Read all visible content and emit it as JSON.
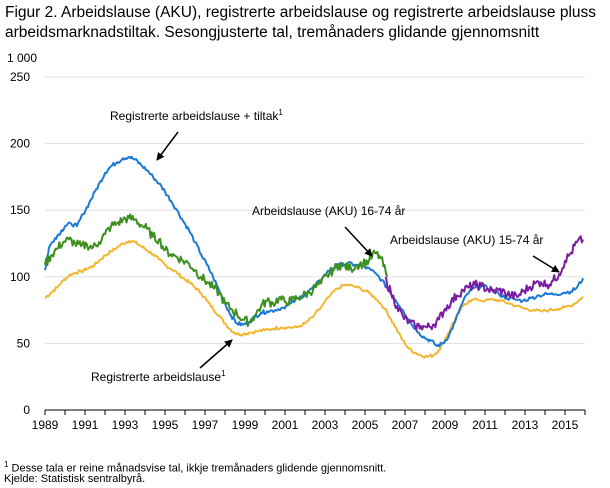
{
  "title": "Figur 2. Arbeidslause (AKU), registrerte arbeidslause og registrerte arbeidslause pluss arbeidsmarknadstiltak. Sesongjusterte tal, tremånaders glidande gjennomsnitt",
  "footnote_marker": "1",
  "footnote": "Desse tala er reine månadsvise tal, ikkje tremånaders glidende gjennomsnitt.",
  "source": "Kjelde: Statistisk sentralbyrå.",
  "colors": {
    "registered_plus": "#1a7ad4",
    "aku_16_74": "#3d8f1e",
    "aku_15_74": "#7a1fa2",
    "registered": "#f2b630",
    "grid": "#e0e0e0",
    "axis": "#000000"
  },
  "chart_data": {
    "type": "line",
    "ylabel": "1 000",
    "ylim": [
      0,
      250
    ],
    "yticks": [
      0,
      50,
      100,
      150,
      200,
      250
    ],
    "xlim": [
      1989,
      2016
    ],
    "xticks": [
      1989,
      1991,
      1993,
      1995,
      1997,
      1999,
      2001,
      2003,
      2005,
      2007,
      2009,
      2011,
      2013,
      2015
    ],
    "grid": true,
    "annotations": [
      {
        "text": "Registrerte  arbeidslause  + tiltak",
        "sup": "1",
        "series": "registered_plus"
      },
      {
        "text": "Arbeidslause  (AKU) 16-74  år",
        "sup": "",
        "series": "aku_16_74"
      },
      {
        "text": "Arbeidslause  (AKU) 15-74  år",
        "sup": "",
        "series": "aku_15_74"
      },
      {
        "text": "Registrerte  arbeidslause",
        "sup": "1",
        "series": "registered"
      }
    ],
    "series": [
      {
        "key": "registered_plus",
        "name": "Registrerte  arbeidslause  + tiltak",
        "x": [
          1989.0,
          1989.2,
          1989.5,
          1989.8,
          1990.0,
          1990.3,
          1990.6,
          1990.9,
          1991.2,
          1991.5,
          1991.8,
          1992.0,
          1992.3,
          1992.6,
          1992.9,
          1993.2,
          1993.5,
          1993.8,
          1994.1,
          1994.4,
          1994.7,
          1995.0,
          1995.3,
          1995.6,
          1995.9,
          1996.2,
          1996.5,
          1996.8,
          1997.1,
          1997.4,
          1997.7,
          1998.0,
          1998.3,
          1998.6,
          1998.9,
          1999.2,
          1999.5,
          1999.8,
          2000.1,
          2000.5,
          2000.9,
          2001.3,
          2001.7,
          2002.1,
          2002.5,
          2002.9,
          2003.3,
          2003.7,
          2004.1,
          2004.5,
          2004.9,
          2005.3,
          2005.7,
          2006.1,
          2006.5,
          2006.9,
          2007.3,
          2007.7,
          2008.0,
          2008.3,
          2008.6,
          2008.9,
          2009.2,
          2009.5,
          2009.8,
          2010.1,
          2010.5,
          2010.9,
          2011.3,
          2011.7,
          2012.1,
          2012.5,
          2012.9,
          2013.3,
          2013.7,
          2014.1,
          2014.5,
          2014.9,
          2015.3,
          2015.6,
          2015.9
        ],
        "values": [
          105,
          122,
          129,
          134,
          138,
          140,
          138,
          147,
          155,
          164,
          172,
          178,
          183,
          186,
          189,
          190,
          188,
          184,
          180,
          175,
          170,
          164,
          157,
          150,
          142,
          135,
          126,
          117,
          109,
          100,
          90,
          80,
          71,
          65,
          64,
          66,
          70,
          73,
          74,
          75,
          77,
          80,
          84,
          88,
          93,
          100,
          106,
          109,
          110,
          109,
          108,
          105,
          100,
          92,
          83,
          75,
          65,
          58,
          54,
          52,
          48,
          50,
          56,
          66,
          78,
          87,
          92,
          93,
          90,
          87,
          84,
          83,
          82,
          84,
          86,
          87,
          87,
          88,
          89,
          92,
          99
        ]
      },
      {
        "key": "aku_16_74",
        "name": "Arbeidslause  (AKU) 16-74  år",
        "x": [
          1989.0,
          1989.3,
          1989.6,
          1989.9,
          1990.2,
          1990.5,
          1990.8,
          1991.1,
          1991.4,
          1991.7,
          1992.0,
          1992.3,
          1992.6,
          1992.9,
          1993.2,
          1993.5,
          1993.8,
          1994.1,
          1994.4,
          1994.7,
          1995.0,
          1995.3,
          1995.6,
          1995.9,
          1996.2,
          1996.5,
          1996.8,
          1997.1,
          1997.4,
          1997.7,
          1998.0,
          1998.3,
          1998.6,
          1998.9,
          1999.2,
          1999.5,
          1999.8,
          2000.1,
          2000.4,
          2000.7,
          2001.0,
          2001.3,
          2001.6,
          2001.9,
          2002.2,
          2002.5,
          2002.8,
          2003.1,
          2003.4,
          2003.7,
          2004.0,
          2004.3,
          2004.6,
          2004.9,
          2005.2,
          2005.5,
          2005.8,
          2006.1
        ],
        "values": [
          109,
          116,
          121,
          126,
          128,
          125,
          123,
          124,
          122,
          126,
          132,
          138,
          140,
          143,
          144,
          143,
          139,
          136,
          130,
          128,
          120,
          117,
          115,
          112,
          110,
          105,
          100,
          96,
          92,
          88,
          80,
          76,
          72,
          68,
          66,
          71,
          78,
          82,
          80,
          84,
          81,
          82,
          84,
          86,
          88,
          92,
          95,
          101,
          105,
          109,
          108,
          106,
          109,
          110,
          112,
          118,
          114,
          100
        ]
      },
      {
        "key": "aku_15_74",
        "name": "Arbeidslause  (AKU) 15-74  år",
        "x": [
          2006.0,
          2006.3,
          2006.6,
          2006.9,
          2007.2,
          2007.5,
          2007.8,
          2008.1,
          2008.4,
          2008.7,
          2009.0,
          2009.3,
          2009.6,
          2009.9,
          2010.2,
          2010.5,
          2010.8,
          2011.1,
          2011.4,
          2011.7,
          2012.0,
          2012.3,
          2012.6,
          2012.9,
          2013.2,
          2013.5,
          2013.8,
          2014.1,
          2014.4,
          2014.7,
          2015.0,
          2015.3,
          2015.6,
          2015.9
        ],
        "values": [
          99,
          88,
          78,
          70,
          66,
          63,
          63,
          62,
          64,
          68,
          76,
          81,
          86,
          90,
          92,
          94,
          93,
          91,
          89,
          90,
          88,
          86,
          85,
          89,
          92,
          95,
          96,
          94,
          97,
          102,
          112,
          118,
          126,
          128
        ]
      },
      {
        "key": "registered",
        "name": "Registrerte  arbeidslause",
        "x": [
          1989.0,
          1989.3,
          1989.6,
          1989.9,
          1990.2,
          1990.5,
          1990.8,
          1991.1,
          1991.4,
          1991.7,
          1992.0,
          1992.3,
          1992.6,
          1992.9,
          1993.2,
          1993.5,
          1993.8,
          1994.1,
          1994.4,
          1994.7,
          1995.0,
          1995.3,
          1995.6,
          1995.9,
          1996.2,
          1996.5,
          1996.8,
          1997.1,
          1997.4,
          1997.7,
          1998.0,
          1998.3,
          1998.6,
          1998.9,
          1999.2,
          1999.6,
          2000.0,
          2000.4,
          2000.8,
          2001.2,
          2001.6,
          2002.0,
          2002.4,
          2002.8,
          2003.2,
          2003.6,
          2004.0,
          2004.4,
          2004.8,
          2005.2,
          2005.6,
          2006.0,
          2006.3,
          2006.6,
          2006.9,
          2007.2,
          2007.5,
          2007.8,
          2008.1,
          2008.4,
          2008.7,
          2009.0,
          2009.3,
          2009.6,
          2009.9,
          2010.2,
          2010.6,
          2011.0,
          2011.4,
          2011.8,
          2012.2,
          2012.6,
          2013.0,
          2013.4,
          2013.8,
          2014.2,
          2014.6,
          2015.0,
          2015.4,
          2015.9
        ],
        "values": [
          84,
          88,
          92,
          97,
          101,
          103,
          104,
          106,
          108,
          112,
          116,
          119,
          122,
          125,
          127,
          126,
          123,
          120,
          117,
          113,
          109,
          106,
          103,
          99,
          96,
          92,
          88,
          82,
          76,
          71,
          65,
          60,
          57,
          57,
          58,
          59,
          60,
          61,
          62,
          62,
          62,
          65,
          70,
          77,
          85,
          91,
          94,
          93,
          91,
          88,
          83,
          76,
          68,
          60,
          52,
          46,
          43,
          41,
          40,
          41,
          45,
          53,
          62,
          71,
          78,
          82,
          83,
          82,
          83,
          82,
          80,
          78,
          76,
          75,
          74,
          75,
          76,
          77,
          79,
          85
        ]
      }
    ]
  }
}
